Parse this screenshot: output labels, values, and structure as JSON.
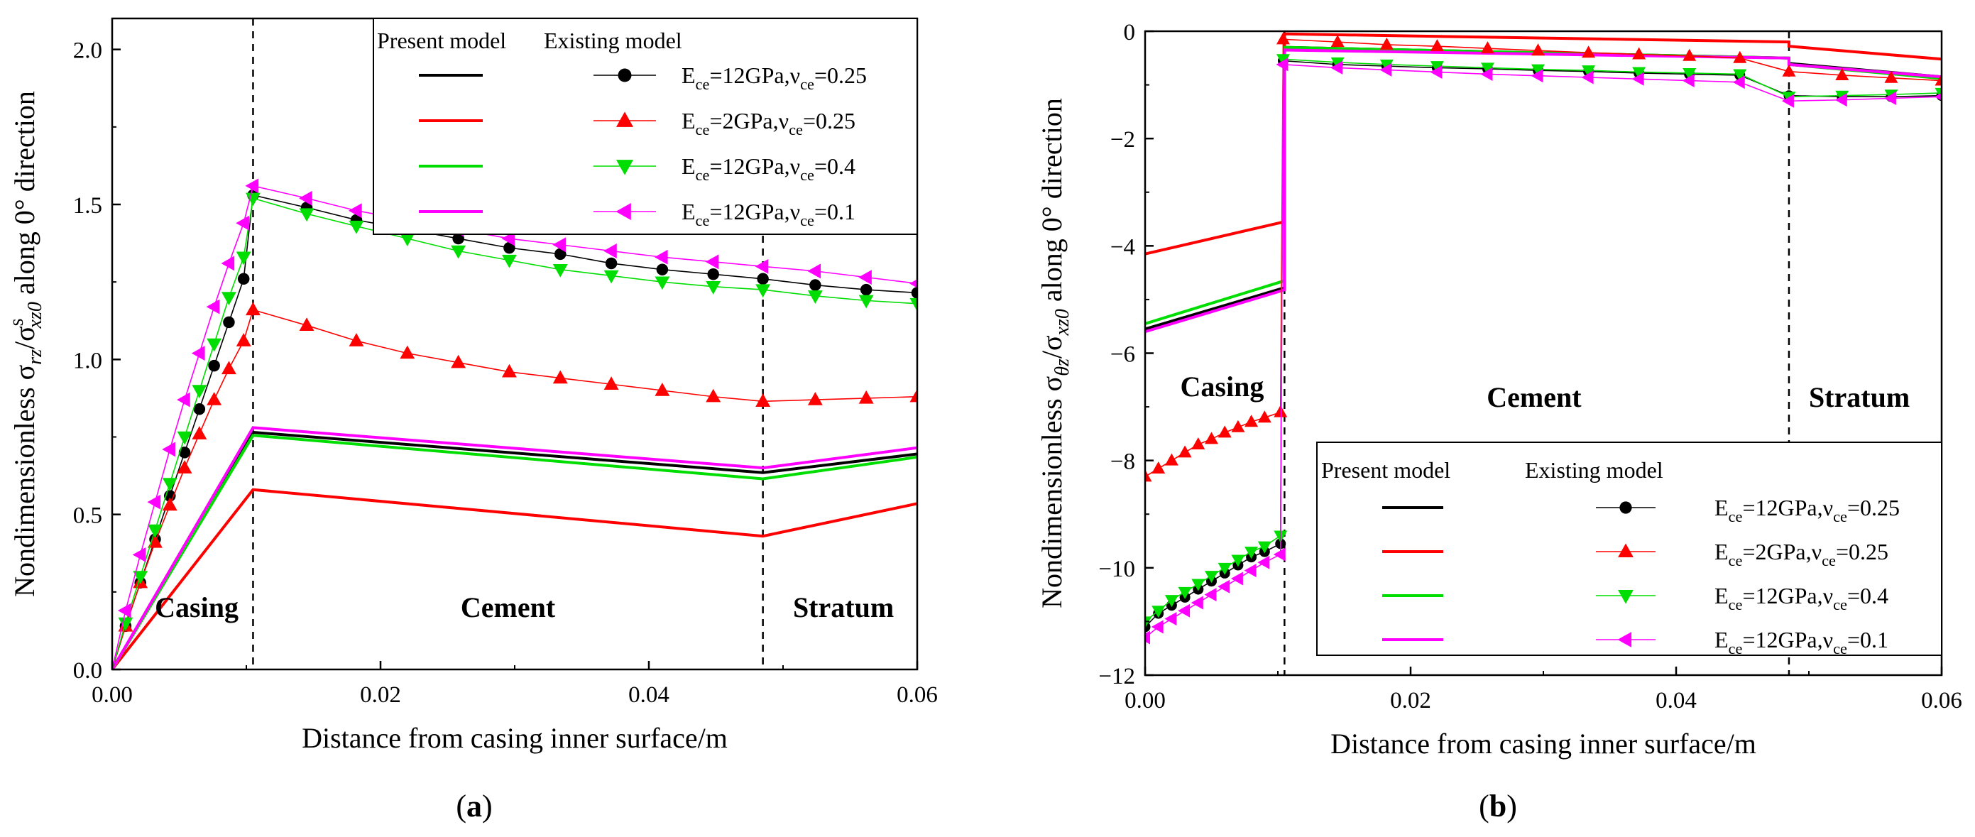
{
  "figure": {
    "panels": [
      {
        "label": "(a)",
        "chart_data": {
          "type": "line",
          "xlabel": "Distance from casing inner surface/m",
          "ylabel_parts": {
            "pre": "Nondimensionless σ",
            "sub1": "rz",
            "mid": "/σ",
            "sup2": "s",
            "sub2": "xz0",
            "post": " along 0° direction"
          },
          "xlim": [
            0,
            0.06
          ],
          "ylim": [
            0,
            2.1
          ],
          "xticks": [
            0,
            0.02,
            0.04,
            0.06
          ],
          "xtick_labels": [
            "0.00",
            "0.02",
            "0.04",
            "0.06"
          ],
          "yticks": [
            0,
            0.5,
            1.0,
            1.5,
            2.0
          ],
          "ytick_labels": [
            "0.0",
            "0.5",
            "1.0",
            "1.5",
            "2.0"
          ],
          "boundaries": [
            0.0105,
            0.0485
          ],
          "regions": [
            {
              "text": "Casing",
              "x": 0.0063,
              "y": 0.17
            },
            {
              "text": "Cement",
              "x": 0.0295,
              "y": 0.17
            },
            {
              "text": "Stratum",
              "x": 0.0545,
              "y": 0.17
            }
          ],
          "legend": {
            "position": "top-right",
            "header_present": "Present model",
            "header_existing": "Existing model",
            "entries": [
              "ce12_025",
              "ce2_025",
              "ce12_04",
              "ce12_01"
            ]
          },
          "present_model": [
            {
              "key": "ce12_025",
              "x": [
                0,
                0.0105,
                0.0485,
                0.06
              ],
              "y": [
                0,
                0.765,
                0.635,
                0.695
              ]
            },
            {
              "key": "ce2_025",
              "x": [
                0,
                0.0105,
                0.0485,
                0.06
              ],
              "y": [
                0,
                0.58,
                0.43,
                0.535
              ]
            },
            {
              "key": "ce12_04",
              "x": [
                0,
                0.0105,
                0.0485,
                0.06
              ],
              "y": [
                0,
                0.755,
                0.615,
                0.685
              ]
            },
            {
              "key": "ce12_01",
              "x": [
                0,
                0.0105,
                0.0485,
                0.06
              ],
              "y": [
                0,
                0.78,
                0.65,
                0.715
              ]
            }
          ],
          "existing_model": [
            {
              "key": "ce12_025",
              "x": [
                0.0,
                0.001,
                0.0021,
                0.0032,
                0.0043,
                0.0054,
                0.0065,
                0.0076,
                0.0087,
                0.0098,
                0.0105,
                0.0145,
                0.0182,
                0.022,
                0.0258,
                0.0296,
                0.0334,
                0.0372,
                0.041,
                0.0448,
                0.0485,
                0.0524,
                0.0562,
                0.06
              ],
              "y": [
                0.0,
                0.14,
                0.28,
                0.42,
                0.56,
                0.7,
                0.84,
                0.98,
                1.12,
                1.26,
                1.53,
                1.49,
                1.45,
                1.42,
                1.39,
                1.36,
                1.34,
                1.31,
                1.29,
                1.275,
                1.26,
                1.24,
                1.225,
                1.215
              ]
            },
            {
              "key": "ce2_025",
              "x": [
                0.0,
                0.001,
                0.0021,
                0.0032,
                0.0043,
                0.0054,
                0.0065,
                0.0076,
                0.0087,
                0.0098,
                0.0105,
                0.0145,
                0.0182,
                0.022,
                0.0258,
                0.0296,
                0.0334,
                0.0372,
                0.041,
                0.0448,
                0.0485,
                0.0524,
                0.0562,
                0.06
              ],
              "y": [
                0.0,
                0.14,
                0.28,
                0.41,
                0.53,
                0.65,
                0.76,
                0.87,
                0.97,
                1.06,
                1.16,
                1.11,
                1.06,
                1.02,
                0.99,
                0.96,
                0.94,
                0.92,
                0.9,
                0.88,
                0.865,
                0.87,
                0.875,
                0.88
              ]
            },
            {
              "key": "ce12_04",
              "x": [
                0.0,
                0.001,
                0.0021,
                0.0032,
                0.0043,
                0.0054,
                0.0065,
                0.0076,
                0.0087,
                0.0098,
                0.0105,
                0.0145,
                0.0182,
                0.022,
                0.0258,
                0.0296,
                0.0334,
                0.0372,
                0.041,
                0.0448,
                0.0485,
                0.0524,
                0.0562,
                0.06
              ],
              "y": [
                0.0,
                0.15,
                0.3,
                0.45,
                0.6,
                0.75,
                0.9,
                1.05,
                1.2,
                1.33,
                1.52,
                1.47,
                1.43,
                1.39,
                1.35,
                1.32,
                1.29,
                1.27,
                1.25,
                1.235,
                1.225,
                1.205,
                1.19,
                1.18
              ]
            },
            {
              "key": "ce12_01",
              "x": [
                0.0,
                0.001,
                0.0021,
                0.0032,
                0.0043,
                0.0054,
                0.0065,
                0.0076,
                0.0087,
                0.0098,
                0.0105,
                0.0145,
                0.0182,
                0.022,
                0.0258,
                0.0296,
                0.0334,
                0.0372,
                0.041,
                0.0448,
                0.0485,
                0.0524,
                0.0562,
                0.06
              ],
              "y": [
                0.0,
                0.19,
                0.37,
                0.54,
                0.71,
                0.87,
                1.02,
                1.17,
                1.31,
                1.44,
                1.56,
                1.52,
                1.48,
                1.45,
                1.42,
                1.39,
                1.37,
                1.35,
                1.33,
                1.315,
                1.3,
                1.285,
                1.265,
                1.245
              ]
            }
          ]
        }
      },
      {
        "label": "(b)",
        "chart_data": {
          "type": "line",
          "xlabel": "Distance from casing inner surface/m",
          "ylabel_parts": {
            "pre": "Nondimensionless σ",
            "sub1": "θz",
            "mid": "/σ",
            "sup2": "",
            "sub2": "xz0",
            "post": " along 0° direction"
          },
          "xlim": [
            0,
            0.06
          ],
          "ylim": [
            -12,
            0
          ],
          "xticks": [
            0,
            0.02,
            0.04,
            0.06
          ],
          "xtick_labels": [
            "0.00",
            "0.02",
            "0.04",
            "0.06"
          ],
          "yticks": [
            -12,
            -10,
            -8,
            -6,
            -4,
            -2,
            0
          ],
          "ytick_labels": [
            "−12",
            "−10",
            "−8",
            "−6",
            "−4",
            "−2",
            "0"
          ],
          "boundaries": [
            0.0105,
            0.0485
          ],
          "regions": [
            {
              "text": "Casing",
              "x": 0.0058,
              "y": -6.8
            },
            {
              "text": "Cement",
              "x": 0.0293,
              "y": -7.0
            },
            {
              "text": "Stratum",
              "x": 0.0538,
              "y": -7.0
            }
          ],
          "legend": {
            "position": "bottom-right",
            "header_present": "Present model",
            "header_existing": "Existing model",
            "entries": [
              "ce12_025",
              "ce2_025",
              "ce12_04",
              "ce12_01"
            ]
          },
          "present_model": [
            {
              "key": "ce12_025",
              "x": [
                0,
                0.0105,
                0.0105,
                0.0485,
                0.0485,
                0.06
              ],
              "y": [
                -5.55,
                -4.78,
                -0.3,
                -0.5,
                -0.6,
                -0.85
              ]
            },
            {
              "key": "ce2_025",
              "x": [
                0,
                0.0105,
                0.0105,
                0.0485,
                0.0485,
                0.06
              ],
              "y": [
                -4.15,
                -3.55,
                -0.05,
                -0.2,
                -0.28,
                -0.52
              ]
            },
            {
              "key": "ce12_04",
              "x": [
                0,
                0.0105,
                0.0105,
                0.0485,
                0.0485,
                0.06
              ],
              "y": [
                -5.45,
                -4.65,
                -0.3,
                -0.5,
                -0.62,
                -0.88
              ]
            },
            {
              "key": "ce12_01",
              "x": [
                0,
                0.0105,
                0.0105,
                0.0485,
                0.0485,
                0.06
              ],
              "y": [
                -5.6,
                -4.82,
                -0.35,
                -0.5,
                -0.62,
                -0.85
              ]
            }
          ],
          "existing_model": [
            {
              "key": "ce12_025",
              "x": [
                0.0,
                0.001,
                0.002,
                0.003,
                0.004,
                0.005,
                0.006,
                0.007,
                0.008,
                0.009,
                0.0102,
                0.0104,
                0.0145,
                0.0182,
                0.022,
                0.0258,
                0.0296,
                0.0334,
                0.0372,
                0.041,
                0.0448,
                0.0485,
                0.0525,
                0.0562,
                0.06
              ],
              "y": [
                -11.1,
                -10.85,
                -10.7,
                -10.55,
                -10.4,
                -10.25,
                -10.1,
                -9.95,
                -9.8,
                -9.7,
                -9.55,
                -0.55,
                -0.62,
                -0.65,
                -0.68,
                -0.7,
                -0.73,
                -0.75,
                -0.78,
                -0.8,
                -0.82,
                -1.2,
                -1.22,
                -1.22,
                -1.2
              ]
            },
            {
              "key": "ce2_025",
              "x": [
                0.0,
                0.001,
                0.002,
                0.003,
                0.004,
                0.005,
                0.006,
                0.007,
                0.008,
                0.009,
                0.0102,
                0.0104,
                0.0145,
                0.0182,
                0.022,
                0.0258,
                0.0296,
                0.0334,
                0.0372,
                0.041,
                0.0448,
                0.0485,
                0.0525,
                0.0562,
                0.06
              ],
              "y": [
                -8.3,
                -8.15,
                -8.0,
                -7.85,
                -7.7,
                -7.6,
                -7.48,
                -7.38,
                -7.28,
                -7.2,
                -7.1,
                -0.15,
                -0.2,
                -0.25,
                -0.28,
                -0.32,
                -0.36,
                -0.4,
                -0.43,
                -0.46,
                -0.5,
                -0.75,
                -0.82,
                -0.87,
                -0.92
              ]
            },
            {
              "key": "ce12_04",
              "x": [
                0.0,
                0.001,
                0.002,
                0.003,
                0.004,
                0.005,
                0.006,
                0.007,
                0.008,
                0.009,
                0.0102,
                0.0104,
                0.0145,
                0.0182,
                0.022,
                0.0258,
                0.0296,
                0.0334,
                0.0372,
                0.041,
                0.0448,
                0.0485,
                0.0525,
                0.0562,
                0.06
              ],
              "y": [
                -11.0,
                -10.8,
                -10.6,
                -10.45,
                -10.3,
                -10.15,
                -10.0,
                -9.85,
                -9.7,
                -9.6,
                -9.4,
                -0.52,
                -0.58,
                -0.62,
                -0.65,
                -0.68,
                -0.71,
                -0.73,
                -0.76,
                -0.78,
                -0.8,
                -1.22,
                -1.2,
                -1.18,
                -1.15
              ]
            },
            {
              "key": "ce12_01",
              "x": [
                0.0,
                0.001,
                0.002,
                0.003,
                0.004,
                0.005,
                0.006,
                0.007,
                0.008,
                0.009,
                0.0102,
                0.0104,
                0.0145,
                0.0182,
                0.022,
                0.0258,
                0.0296,
                0.0334,
                0.0372,
                0.041,
                0.0448,
                0.0485,
                0.0525,
                0.0562,
                0.06
              ],
              "y": [
                -11.3,
                -11.1,
                -10.95,
                -10.8,
                -10.65,
                -10.5,
                -10.35,
                -10.2,
                -10.05,
                -9.9,
                -9.75,
                -0.62,
                -0.68,
                -0.72,
                -0.76,
                -0.8,
                -0.83,
                -0.86,
                -0.89,
                -0.92,
                -0.95,
                -1.3,
                -1.28,
                -1.25,
                -1.22
              ]
            }
          ]
        }
      }
    ],
    "series_styles": {
      "ce12_025": {
        "color": "#000000",
        "marker": "circle"
      },
      "ce2_025": {
        "color": "#ff0000",
        "marker": "triangle-up"
      },
      "ce12_04": {
        "color": "#00dd00",
        "marker": "triangle-down"
      },
      "ce12_01": {
        "color": "#ff00ff",
        "marker": "triangle-left"
      }
    },
    "legend_labels": {
      "ce12_025": {
        "E": "12GPa",
        "nu": "0.25"
      },
      "ce2_025": {
        "E": "2GPa",
        "nu": "0.25"
      },
      "ce12_04": {
        "E": "12GPa",
        "nu": "0.4"
      },
      "ce12_01": {
        "E": "12GPa",
        "nu": "0.1"
      }
    },
    "legend_symbols": {
      "E": "E",
      "E_sub": "ce",
      "nu": "ν",
      "nu_sub": "ce"
    }
  }
}
